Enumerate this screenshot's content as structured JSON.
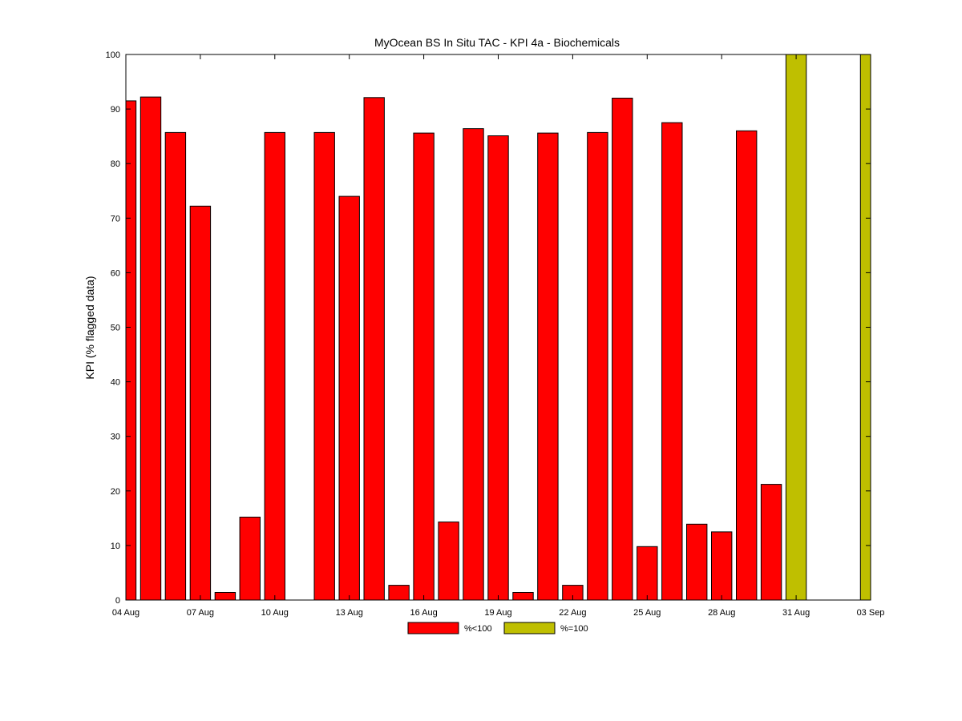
{
  "chart_data": {
    "type": "bar",
    "title": "MyOcean  BS In Situ TAC - KPI 4a - Biochemicals",
    "ylabel": "KPI (% flagged data)",
    "xlabel": "",
    "ylim": [
      0,
      100
    ],
    "yticks": [
      0,
      10,
      20,
      30,
      40,
      50,
      60,
      70,
      80,
      90,
      100
    ],
    "xlim": [
      "2012-08-04",
      "2012-09-03"
    ],
    "xticks": [
      {
        "date": "2012-08-04",
        "label": "04 Aug"
      },
      {
        "date": "2012-08-07",
        "label": "07 Aug"
      },
      {
        "date": "2012-08-10",
        "label": "10 Aug"
      },
      {
        "date": "2012-08-13",
        "label": "13 Aug"
      },
      {
        "date": "2012-08-16",
        "label": "16 Aug"
      },
      {
        "date": "2012-08-19",
        "label": "19 Aug"
      },
      {
        "date": "2012-08-22",
        "label": "22 Aug"
      },
      {
        "date": "2012-08-25",
        "label": "25 Aug"
      },
      {
        "date": "2012-08-28",
        "label": "28 Aug"
      },
      {
        "date": "2012-08-31",
        "label": "31 Aug"
      },
      {
        "date": "2012-09-03",
        "label": "03 Sep"
      }
    ],
    "grid": false,
    "legend_position": "bottom-center",
    "series": [
      {
        "name": "%<100",
        "color": "#ff0000",
        "points": [
          {
            "date": "2012-08-04",
            "value": 91.5
          },
          {
            "date": "2012-08-05",
            "value": 92.2
          },
          {
            "date": "2012-08-06",
            "value": 85.7
          },
          {
            "date": "2012-08-07",
            "value": 72.2
          },
          {
            "date": "2012-08-08",
            "value": 1.4
          },
          {
            "date": "2012-08-09",
            "value": 15.2
          },
          {
            "date": "2012-08-10",
            "value": 85.7
          },
          {
            "date": "2012-08-12",
            "value": 85.7
          },
          {
            "date": "2012-08-13",
            "value": 74.0
          },
          {
            "date": "2012-08-14",
            "value": 92.1
          },
          {
            "date": "2012-08-15",
            "value": 2.7
          },
          {
            "date": "2012-08-16",
            "value": 85.6
          },
          {
            "date": "2012-08-17",
            "value": 14.3
          },
          {
            "date": "2012-08-18",
            "value": 86.4
          },
          {
            "date": "2012-08-19",
            "value": 85.1
          },
          {
            "date": "2012-08-20",
            "value": 1.4
          },
          {
            "date": "2012-08-21",
            "value": 85.6
          },
          {
            "date": "2012-08-22",
            "value": 2.7
          },
          {
            "date": "2012-08-23",
            "value": 85.7
          },
          {
            "date": "2012-08-24",
            "value": 92.0
          },
          {
            "date": "2012-08-25",
            "value": 9.8
          },
          {
            "date": "2012-08-26",
            "value": 87.5
          },
          {
            "date": "2012-08-27",
            "value": 13.9
          },
          {
            "date": "2012-08-28",
            "value": 12.5
          },
          {
            "date": "2012-08-29",
            "value": 86.0
          },
          {
            "date": "2012-08-30",
            "value": 21.2
          }
        ]
      },
      {
        "name": "%=100",
        "color": "#bfbf00",
        "points": [
          {
            "date": "2012-08-31",
            "value": 100
          },
          {
            "date": "2012-09-03",
            "value": 100
          }
        ]
      }
    ]
  }
}
